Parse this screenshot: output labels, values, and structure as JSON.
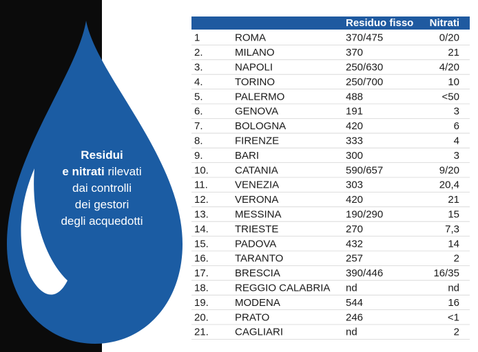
{
  "caption": {
    "lines": [
      [
        {
          "text": "Residui",
          "bold": true
        }
      ],
      [
        {
          "text": "e nitrati",
          "bold": true
        },
        {
          "text": " rilevati",
          "bold": false
        }
      ],
      [
        {
          "text": "dai controlli",
          "bold": false
        }
      ],
      [
        {
          "text": "dei gestori",
          "bold": false
        }
      ],
      [
        {
          "text": "degli acquedotti",
          "bold": false
        }
      ]
    ]
  },
  "table": {
    "header": [
      "Residuo fisso",
      "Nitrati"
    ],
    "rows": [
      [
        "1",
        "ROMA",
        "370/475",
        "0/20"
      ],
      [
        "2.",
        "MILANO",
        "370",
        "21"
      ],
      [
        "3.",
        "NAPOLI",
        "250/630",
        "4/20"
      ],
      [
        "4.",
        "TORINO",
        "250/700",
        "10"
      ],
      [
        "5.",
        "PALERMO",
        "488",
        "<50"
      ],
      [
        "6.",
        "GENOVA",
        "191",
        "3"
      ],
      [
        "7.",
        "BOLOGNA",
        "420",
        "6"
      ],
      [
        "8.",
        "FIRENZE",
        "333",
        "4"
      ],
      [
        "9.",
        "BARI",
        "300",
        "3"
      ],
      [
        "10.",
        "CATANIA",
        "590/657",
        "9/20"
      ],
      [
        "11.",
        "VENEZIA",
        "303",
        "20,4"
      ],
      [
        "12.",
        "VERONA",
        "420",
        "21"
      ],
      [
        "13.",
        "MESSINA",
        "190/290",
        "15"
      ],
      [
        "14.",
        "TRIESTE",
        "270",
        "7,3"
      ],
      [
        "15.",
        "PADOVA",
        "432",
        "14"
      ],
      [
        "16.",
        "TARANTO",
        "257",
        "2"
      ],
      [
        "17.",
        "BRESCIA",
        "390/446",
        "16/35"
      ],
      [
        "18.",
        "REGGIO CALABRIA",
        "nd",
        "nd"
      ],
      [
        "19.",
        "MODENA",
        "544",
        "16"
      ],
      [
        "20.",
        "PRATO",
        "246",
        "<1"
      ],
      [
        "21.",
        "CAGLIARI",
        "nd",
        "2"
      ]
    ]
  }
}
